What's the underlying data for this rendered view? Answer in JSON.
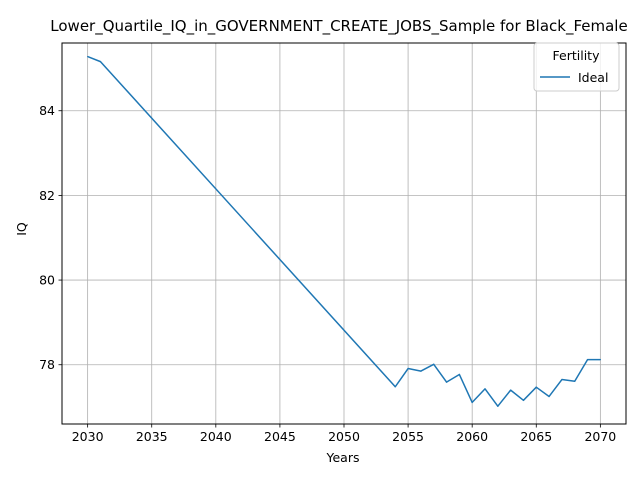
{
  "chart_data": {
    "type": "line",
    "title": "Lower_Quartile_IQ_in_GOVERNMENT_CREATE_JOBS_Sample for Black_Female",
    "xlabel": "Years",
    "ylabel": "IQ",
    "xlim": [
      2028,
      2072
    ],
    "ylim": [
      76.6,
      85.6
    ],
    "xticks": [
      2030,
      2035,
      2040,
      2045,
      2050,
      2055,
      2060,
      2065,
      2070
    ],
    "yticks": [
      78,
      80,
      82,
      84
    ],
    "grid": true,
    "legend": {
      "title": "Fertility",
      "position": "top-right"
    },
    "series": [
      {
        "name": "Ideal",
        "color": "#1f77b4",
        "x": [
          2030,
          2031,
          2054,
          2055,
          2056,
          2057,
          2058,
          2059,
          2060,
          2061,
          2062,
          2063,
          2064,
          2065,
          2066,
          2067,
          2068,
          2069,
          2070
        ],
        "y": [
          85.28,
          85.16,
          77.48,
          77.91,
          77.85,
          78.01,
          77.59,
          77.77,
          77.11,
          77.43,
          77.02,
          77.4,
          77.16,
          77.47,
          77.25,
          77.65,
          77.61,
          78.12,
          78.12
        ]
      }
    ]
  }
}
